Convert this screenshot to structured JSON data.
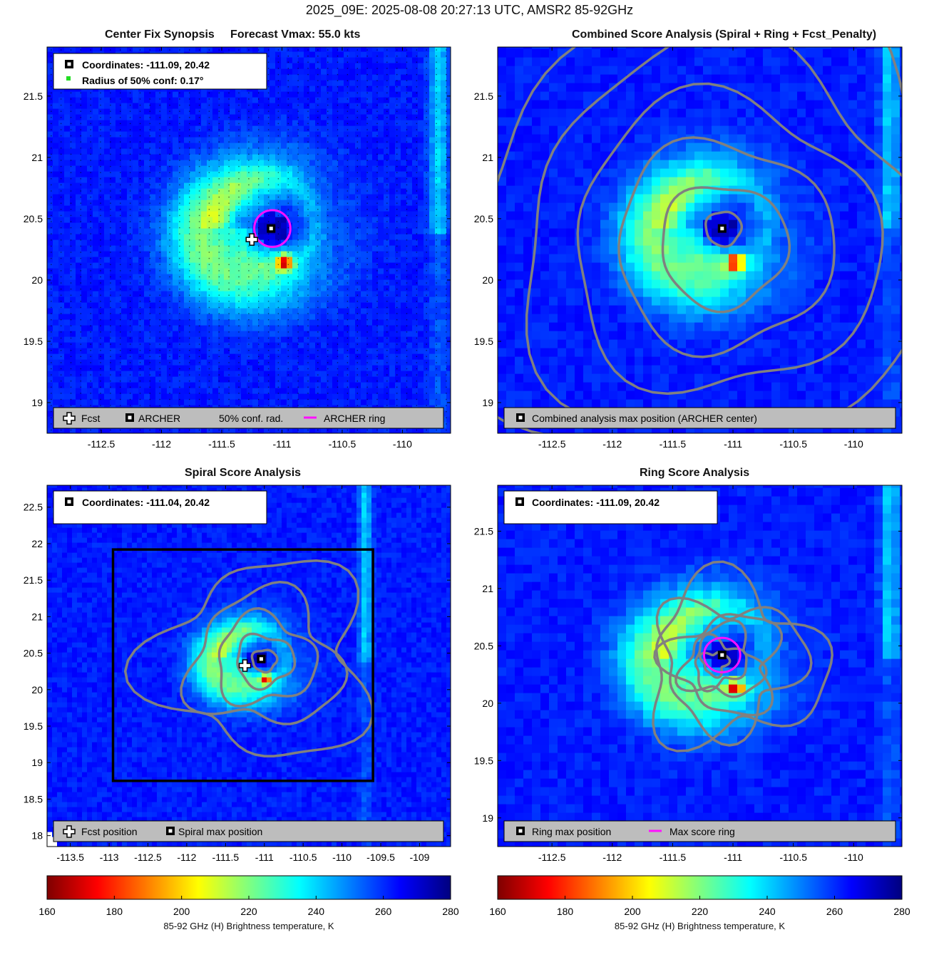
{
  "figure": {
    "suptitle": "2025_09E: 2025-08-08 20:27:13 UTC, AMSR2 85-92GHz"
  },
  "panels": {
    "p1": {
      "title": "Center Fix Synopsis     Forecast Vmax: 55.0 kts",
      "info_coords": "Coordinates: -111.09, 20.42",
      "info_radius": "Radius of 50% conf: 0.17°",
      "legend": {
        "fcst": "Fcst",
        "archer": "ARCHER",
        "conf": "50% conf. rad.",
        "ring": "ARCHER ring"
      }
    },
    "p2": {
      "title": "Combined Score Analysis (Spiral + Ring + Fcst_Penalty)",
      "legend": {
        "max": "Combined analysis max position (ARCHER center)"
      }
    },
    "p3": {
      "title": "Spiral Score Analysis",
      "info_coords": "Coordinates: -111.04, 20.42",
      "legend": {
        "fcst": "Fcst position",
        "max": "Spiral max position"
      }
    },
    "p4": {
      "title": "Ring Score Analysis",
      "info_coords": "Coordinates: -111.09, 20.42",
      "legend": {
        "max": "Ring max position",
        "ring": "Max score ring"
      }
    }
  },
  "colorbar": {
    "label": "85-92 GHz (H) Brightness temperature, K",
    "ticks": [
      "160",
      "180",
      "200",
      "220",
      "240",
      "260",
      "280"
    ],
    "range": [
      160,
      280
    ],
    "colormap": "jet_reversed"
  },
  "chart_data": [
    {
      "type": "heatmap",
      "title": "Center Fix Synopsis     Forecast Vmax: 55.0 kts",
      "xlim": [
        -112.95,
        -109.6
      ],
      "ylim": [
        18.75,
        21.9
      ],
      "xticks": [
        -112.5,
        -112,
        -111.5,
        -111,
        -110.5,
        -110
      ],
      "yticks": [
        19,
        19.5,
        20,
        20.5,
        21,
        21.5
      ],
      "archer_center": [
        -111.09,
        20.42
      ],
      "forecast_position": [
        -111.25,
        20.33
      ],
      "radius_50pct_conf_deg": 0.17,
      "archer_ring_radius_deg": 0.15,
      "colors": {
        "archer_ring": "#ff10ff",
        "conf_marker": "#22dd22"
      }
    },
    {
      "type": "heatmap",
      "title": "Combined Score Analysis (Spiral + Ring + Fcst_Penalty)",
      "xlim": [
        -112.95,
        -109.6
      ],
      "ylim": [
        18.75,
        21.9
      ],
      "xticks": [
        -112.5,
        -112,
        -111.5,
        -111,
        -110.5,
        -110
      ],
      "yticks": [
        19,
        19.5,
        20,
        20.5,
        21,
        21.5
      ],
      "max_position": [
        -111.09,
        20.42
      ],
      "contours": "combined score, grey"
    },
    {
      "type": "heatmap",
      "title": "Spiral Score Analysis",
      "xlim": [
        -113.8,
        -108.6
      ],
      "ylim": [
        17.85,
        22.8
      ],
      "xticks": [
        -113.5,
        -113,
        -112.5,
        -112,
        -111.5,
        -111,
        -110.5,
        -110,
        -109.5,
        -109
      ],
      "yticks": [
        18,
        18.5,
        19,
        19.5,
        20,
        20.5,
        21,
        21.5,
        22,
        22.5
      ],
      "max_position": [
        -111.04,
        20.42
      ],
      "forecast_position": [
        -111.25,
        20.33
      ],
      "analysis_box": {
        "lon": [
          -112.95,
          -109.6
        ],
        "lat": [
          18.75,
          21.92
        ]
      }
    },
    {
      "type": "heatmap",
      "title": "Ring Score Analysis",
      "xlim": [
        -112.95,
        -109.6
      ],
      "ylim": [
        18.75,
        21.9
      ],
      "xticks": [
        -112.5,
        -112,
        -111.5,
        -111,
        -110.5,
        -110
      ],
      "yticks": [
        19,
        19.5,
        20,
        20.5,
        21,
        21.5
      ],
      "max_position": [
        -111.09,
        20.42
      ],
      "max_score_ring_radius_deg": 0.15
    }
  ]
}
